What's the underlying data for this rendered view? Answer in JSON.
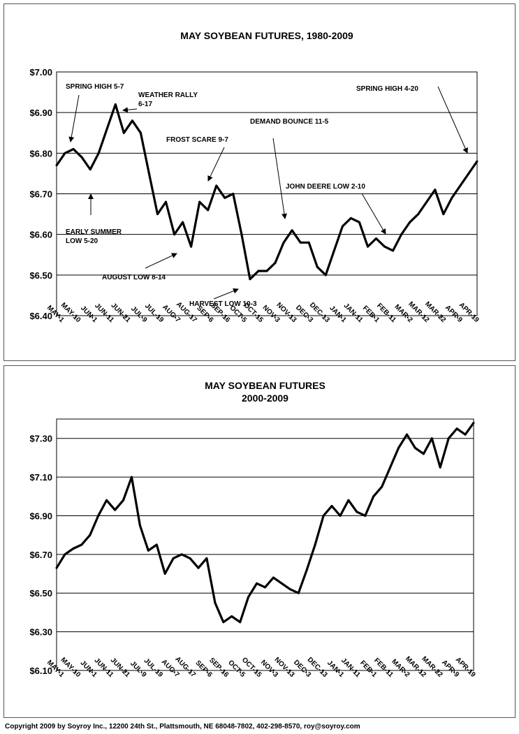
{
  "chart_data": [
    {
      "type": "line",
      "title": "MAY SOYBEAN FUTURES, 1980-2009",
      "y_tick_labels": [
        "$7.00",
        "$6.90",
        "$6.80",
        "$6.70",
        "$6.60",
        "$6.50",
        "$6.40"
      ],
      "y_tick_values": [
        7.0,
        6.9,
        6.8,
        6.7,
        6.6,
        6.5,
        6.4
      ],
      "ylim": [
        6.4,
        7.0
      ],
      "grid": true,
      "x_tick_labels": [
        "MAY-1",
        "MAY-10",
        "JUN-1",
        "JUN-11",
        "JUN-21",
        "JUL-9",
        "JUL-19",
        "AUG-7",
        "AUG-17",
        "SEP-6",
        "SEP-16",
        "OCT-5",
        "OCT-15",
        "NOV-3",
        "NOV-13",
        "DEC-3",
        "DEC-13",
        "JAN-1",
        "JAN-11",
        "FEB-1",
        "FEB-11",
        "MAR-2",
        "MAR-12",
        "MAR-22",
        "APR-9",
        "APR-19"
      ],
      "x": [
        0,
        1,
        2,
        3,
        4,
        5,
        6,
        7,
        8,
        9,
        10,
        11,
        12,
        13,
        14,
        15,
        16,
        17,
        18,
        19,
        20,
        21,
        22,
        23,
        24,
        25,
        26,
        27,
        28,
        29,
        30,
        31,
        32,
        33,
        34,
        35,
        36,
        37,
        38,
        39,
        40,
        41,
        42,
        43,
        44,
        45,
        46,
        47,
        48,
        49,
        50
      ],
      "values": [
        6.77,
        6.8,
        6.81,
        6.79,
        6.76,
        6.8,
        6.86,
        6.92,
        6.85,
        6.88,
        6.85,
        6.75,
        6.65,
        6.68,
        6.6,
        6.63,
        6.57,
        6.68,
        6.66,
        6.72,
        6.69,
        6.7,
        6.6,
        6.49,
        6.51,
        6.51,
        6.53,
        6.58,
        6.61,
        6.58,
        6.58,
        6.52,
        6.5,
        6.56,
        6.62,
        6.64,
        6.63,
        6.57,
        6.59,
        6.57,
        6.56,
        6.6,
        6.63,
        6.65,
        6.68,
        6.71,
        6.65,
        6.69,
        6.72,
        6.75,
        6.78
      ],
      "annotations": [
        {
          "text": "SPRING HIGH 5-7"
        },
        {
          "text": "WEATHER RALLY"
        },
        {
          "text": "6-17"
        },
        {
          "text": "FROST SCARE 9-7"
        },
        {
          "text": "DEMAND BOUNCE 11-5"
        },
        {
          "text": "SPRING HIGH 4-20"
        },
        {
          "text": "JOHN DEERE LOW 2-10"
        },
        {
          "text": "EARLY SUMMER"
        },
        {
          "text": "LOW 5-20"
        },
        {
          "text": "AUGUST LOW 8-14"
        },
        {
          "text": "HARVEST LOW 10-3"
        }
      ]
    },
    {
      "type": "line",
      "title": "MAY SOYBEAN FUTURES",
      "subtitle": "2000-2009",
      "y_tick_labels": [
        "$7.30",
        "$7.10",
        "$6.90",
        "$6.70",
        "$6.50",
        "$6.30",
        "$6.10"
      ],
      "y_tick_values": [
        7.3,
        7.1,
        6.9,
        6.7,
        6.5,
        6.3,
        6.1
      ],
      "ylim": [
        6.1,
        7.4
      ],
      "grid": true,
      "x_tick_labels": [
        "MAY-1",
        "MAY-10",
        "JUN-1",
        "JUN-11",
        "JUN-21",
        "JUL-9",
        "JUL-19",
        "AUG-7",
        "AUG-17",
        "SEP-6",
        "SEP-16",
        "OCT-5",
        "OCT-15",
        "NOV-3",
        "NOV-13",
        "DEC-3",
        "DEC-13",
        "JAN-1",
        "JAN-11",
        "FEB-1",
        "FEB-11",
        "MAR-2",
        "MAR-12",
        "MAR-22",
        "APR-9",
        "APR-19"
      ],
      "x": [
        0,
        1,
        2,
        3,
        4,
        5,
        6,
        7,
        8,
        9,
        10,
        11,
        12,
        13,
        14,
        15,
        16,
        17,
        18,
        19,
        20,
        21,
        22,
        23,
        24,
        25,
        26,
        27,
        28,
        29,
        30,
        31,
        32,
        33,
        34,
        35,
        36,
        37,
        38,
        39,
        40,
        41,
        42,
        43,
        44,
        45,
        46,
        47,
        48,
        49,
        50
      ],
      "values": [
        6.63,
        6.7,
        6.73,
        6.75,
        6.8,
        6.9,
        6.98,
        6.93,
        6.98,
        7.1,
        6.85,
        6.72,
        6.75,
        6.6,
        6.68,
        6.7,
        6.68,
        6.63,
        6.68,
        6.45,
        6.35,
        6.38,
        6.35,
        6.48,
        6.55,
        6.53,
        6.58,
        6.55,
        6.52,
        6.5,
        6.62,
        6.75,
        6.9,
        6.95,
        6.9,
        6.98,
        6.92,
        6.9,
        7.0,
        7.05,
        7.15,
        7.25,
        7.32,
        7.25,
        7.22,
        7.3,
        7.15,
        7.3,
        7.35,
        7.32,
        7.38
      ]
    }
  ],
  "footer": "Copyright 2009 by Soyroy Inc., 12200 24th St., Plattsmouth, NE 68048-7802, 402-298-8570, roy@soyroy.com",
  "colors": {
    "line": "#000000",
    "grid": "#000000",
    "frame": "#555555"
  }
}
